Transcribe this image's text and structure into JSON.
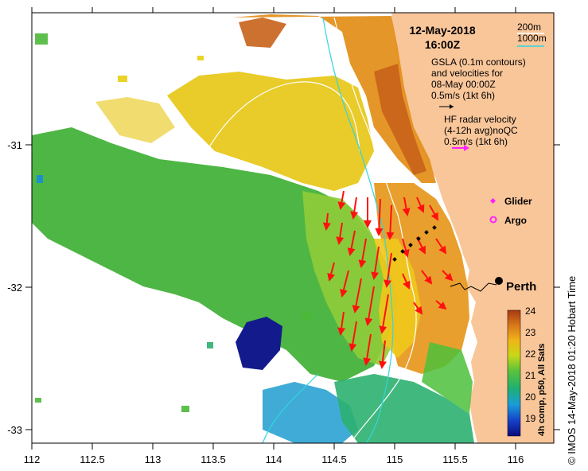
{
  "map": {
    "date": "12-May-2018",
    "time": "16:00Z",
    "x_ticks": [
      "112",
      "112.5",
      "113",
      "113.5",
      "114",
      "114.5",
      "115",
      "115.5",
      "116"
    ],
    "y_ticks": [
      "-31",
      "-32",
      "-33"
    ],
    "isobath_200": "200m",
    "isobath_1000": "1000m",
    "gsla_line1": "GSLA (0.1m contours)",
    "gsla_line2": "and velocities for",
    "gsla_line3": "08-May 00:00Z",
    "gsla_scale": "0.5m/s (1kt 6h)",
    "hf_line1": "HF radar velocity",
    "hf_line2": "(4-12h avg)noQC",
    "hf_scale": "0.5m/s (1kt 6h)",
    "glider_label": "Glider",
    "argo_label": "Argo",
    "city": "Perth",
    "colorbar_ticks": [
      "24",
      "23",
      "22",
      "21",
      "20",
      "19"
    ],
    "colorbar_title": "4h comp, p50, All Sats",
    "credit": "© IMOS 14-May-2018 01:20 Hobart Time"
  },
  "colors": {
    "land": "#f9c69a",
    "isobath_200": "#ffffff",
    "isobath_1000": "#31d6e0",
    "hf_vector": "#ff1010",
    "glider": "#ff22ff",
    "argo": "#ff22ff"
  },
  "icons": {
    "city_marker": "filled-circle",
    "glider_marker": "diamond",
    "argo_marker": "ring"
  }
}
